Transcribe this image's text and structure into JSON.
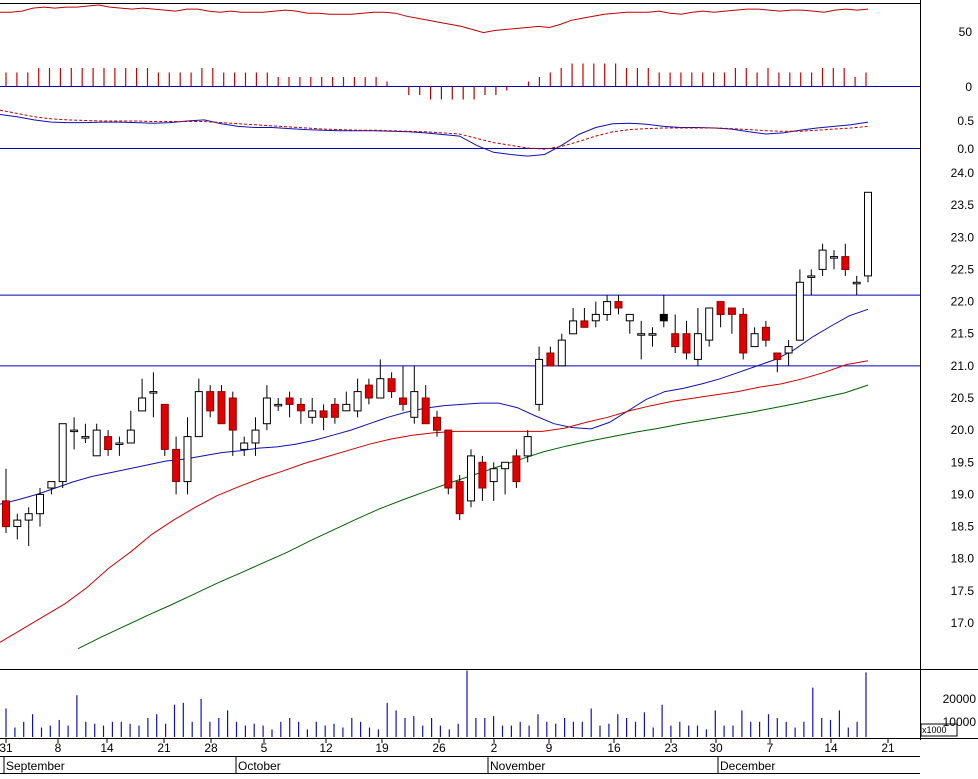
{
  "chart_data": {
    "type": "candlestick",
    "months": [
      "September",
      "October",
      "November",
      "December"
    ],
    "day_ticks": [
      "31",
      "8",
      "14",
      "21",
      "28",
      "5",
      "12",
      "19",
      "26",
      "2",
      "9",
      "16",
      "23",
      "30",
      "7",
      "14",
      "21"
    ],
    "panels": {
      "rsi": {
        "ylim": [
          30,
          80
        ],
        "ticks": [
          "50"
        ],
        "line_values": [
          72,
          72,
          73,
          76,
          77,
          76,
          77,
          77,
          78,
          79,
          77,
          76,
          75,
          76,
          75,
          74,
          73,
          75,
          75,
          73,
          72,
          73,
          72,
          72,
          72,
          73,
          74,
          73,
          71,
          71,
          70,
          70,
          70,
          71,
          72,
          72,
          71,
          68,
          66,
          64,
          62,
          60,
          58,
          55,
          52,
          54,
          55,
          56,
          57,
          58,
          57,
          60,
          64,
          66,
          68,
          70,
          71,
          72,
          72,
          72,
          73,
          71,
          70,
          72,
          73,
          72,
          73,
          74,
          75,
          75,
          74,
          73,
          74,
          74,
          73,
          72,
          74,
          75,
          74,
          75
        ]
      },
      "macd_histogram": {
        "zero_label": "0",
        "values": [
          3,
          3,
          3,
          4,
          4,
          4,
          4,
          4,
          4,
          4,
          4,
          4,
          4,
          4,
          3,
          3,
          3,
          3,
          4,
          4,
          3,
          3,
          3,
          3,
          3,
          2,
          2,
          2,
          2,
          2,
          2,
          2,
          2,
          2,
          2,
          1,
          0,
          -2,
          -2,
          -3,
          -3,
          -3,
          -3,
          -3,
          -2,
          -2,
          -1,
          0,
          1,
          2,
          3,
          4,
          5,
          5,
          5,
          5,
          5,
          4,
          4,
          4,
          3,
          3,
          3,
          3,
          3,
          3,
          3,
          4,
          4,
          3,
          4,
          3,
          3,
          3,
          3,
          4,
          4,
          4,
          2,
          3
        ]
      },
      "macd": {
        "ticks": [
          "0.5",
          "0.0"
        ],
        "series": [
          {
            "color": "#1010b0",
            "values": [
              0.62,
              0.58,
              0.52,
              0.48,
              0.47,
              0.47,
              0.48,
              0.48,
              0.47,
              0.46,
              0.47,
              0.5,
              0.52,
              0.45,
              0.4,
              0.38,
              0.38,
              0.36,
              0.34,
              0.33,
              0.32,
              0.32,
              0.32,
              0.31,
              0.3,
              0.28,
              0.25,
              0.22,
              0.05,
              -0.08,
              -0.12,
              -0.15,
              -0.12,
              0.05,
              0.25,
              0.38,
              0.45,
              0.46,
              0.44,
              0.4,
              0.38,
              0.38,
              0.37,
              0.35,
              0.3,
              0.26,
              0.28,
              0.33,
              0.37,
              0.4,
              0.43,
              0.48
            ]
          },
          {
            "color": "#c00000",
            "dashed": true,
            "values": [
              0.7,
              0.64,
              0.58,
              0.54,
              0.52,
              0.51,
              0.5,
              0.5,
              0.5,
              0.49,
              0.49,
              0.49,
              0.49,
              0.47,
              0.45,
              0.43,
              0.41,
              0.39,
              0.37,
              0.35,
              0.34,
              0.33,
              0.33,
              0.32,
              0.31,
              0.3,
              0.28,
              0.26,
              0.18,
              0.1,
              0.05,
              0.0,
              -0.02,
              0.03,
              0.12,
              0.22,
              0.3,
              0.34,
              0.36,
              0.37,
              0.37,
              0.37,
              0.37,
              0.36,
              0.34,
              0.32,
              0.31,
              0.31,
              0.33,
              0.35,
              0.37,
              0.4
            ]
          }
        ]
      },
      "price": {
        "ylim": [
          16.5,
          24.2
        ],
        "ticks": [
          "24.0",
          "23.5",
          "23.0",
          "22.5",
          "22.0",
          "21.5",
          "21.0",
          "20.5",
          "20.0",
          "19.5",
          "19.0",
          "18.5",
          "18.0",
          "17.5",
          "17.0"
        ],
        "horizontal_lines": [
          22.1,
          21.0
        ],
        "candles": [
          [
            18.9,
            18.5,
            19.4,
            18.4
          ],
          [
            18.5,
            18.6,
            18.7,
            18.3
          ],
          [
            18.6,
            18.7,
            18.8,
            18.2
          ],
          [
            18.7,
            19.0,
            19.1,
            18.5
          ],
          [
            19.1,
            19.2,
            19.2,
            19.0
          ],
          [
            19.2,
            20.1,
            20.1,
            19.1
          ],
          [
            20.0,
            20.0,
            20.2,
            19.7
          ],
          [
            19.9,
            19.9,
            20.1,
            19.8
          ],
          [
            19.6,
            20.0,
            20.1,
            19.6
          ],
          [
            19.9,
            19.7,
            20.0,
            19.6
          ],
          [
            19.8,
            19.8,
            19.9,
            19.6
          ],
          [
            19.8,
            20.0,
            20.3,
            19.8
          ],
          [
            20.3,
            20.5,
            20.8,
            20.3
          ],
          [
            20.6,
            20.6,
            20.9,
            20.2
          ],
          [
            20.4,
            19.7,
            20.4,
            19.6
          ],
          [
            19.7,
            19.2,
            19.9,
            19.0
          ],
          [
            19.2,
            19.9,
            20.2,
            19.0
          ],
          [
            19.9,
            20.6,
            20.8,
            19.9
          ],
          [
            20.6,
            20.3,
            20.7,
            20.2
          ],
          [
            20.6,
            20.1,
            20.7,
            20.1
          ],
          [
            20.5,
            20.0,
            20.6,
            19.6
          ],
          [
            19.7,
            19.8,
            19.9,
            19.6
          ],
          [
            19.8,
            20.0,
            20.2,
            19.6
          ],
          [
            20.1,
            20.5,
            20.7,
            20.0
          ],
          [
            20.4,
            20.4,
            20.5,
            20.3
          ],
          [
            20.5,
            20.4,
            20.6,
            20.2
          ],
          [
            20.4,
            20.3,
            20.5,
            20.1
          ],
          [
            20.2,
            20.3,
            20.5,
            20.1
          ],
          [
            20.3,
            20.2,
            20.4,
            20.0
          ],
          [
            20.4,
            20.2,
            20.5,
            20.1
          ],
          [
            20.3,
            20.4,
            20.6,
            20.3
          ],
          [
            20.3,
            20.6,
            20.8,
            20.2
          ],
          [
            20.7,
            20.5,
            20.8,
            20.4
          ],
          [
            20.5,
            20.8,
            21.1,
            20.5
          ],
          [
            20.8,
            20.6,
            20.9,
            20.5
          ],
          [
            20.5,
            20.4,
            21.0,
            20.3
          ],
          [
            20.2,
            20.6,
            21.0,
            20.1
          ],
          [
            20.5,
            20.1,
            20.7,
            20.1
          ],
          [
            20.2,
            20.0,
            20.3,
            19.9
          ],
          [
            20.0,
            19.1,
            20.0,
            19.0
          ],
          [
            19.2,
            18.7,
            19.3,
            18.6
          ],
          [
            18.9,
            19.6,
            19.7,
            18.8
          ],
          [
            19.5,
            19.1,
            19.6,
            18.9
          ],
          [
            19.2,
            19.4,
            19.5,
            18.9
          ],
          [
            19.4,
            19.5,
            19.5,
            19.0
          ],
          [
            19.6,
            19.2,
            19.7,
            19.1
          ],
          [
            19.6,
            19.9,
            20.0,
            19.5
          ],
          [
            20.4,
            21.1,
            21.3,
            20.3
          ],
          [
            21.2,
            21.0,
            21.3,
            21.0
          ],
          [
            21.0,
            21.4,
            21.5,
            21.0
          ],
          [
            21.5,
            21.7,
            21.9,
            21.5
          ],
          [
            21.7,
            21.6,
            21.9,
            21.6
          ],
          [
            21.7,
            21.8,
            22.0,
            21.6
          ],
          [
            21.8,
            22.0,
            22.1,
            21.7
          ],
          [
            22.0,
            21.9,
            22.1,
            21.8
          ],
          [
            21.7,
            21.8,
            21.8,
            21.5
          ],
          [
            21.5,
            21.5,
            21.7,
            21.1
          ],
          [
            21.5,
            21.5,
            21.6,
            21.3
          ],
          [
            21.7,
            21.8,
            22.1,
            21.6
          ],
          [
            21.5,
            21.3,
            21.8,
            21.2
          ],
          [
            21.5,
            21.2,
            21.7,
            21.1
          ],
          [
            21.1,
            21.5,
            21.9,
            21.0
          ],
          [
            21.4,
            21.9,
            21.9,
            21.3
          ],
          [
            22.0,
            21.8,
            22.0,
            21.6
          ],
          [
            21.9,
            21.8,
            21.9,
            21.5
          ],
          [
            21.8,
            21.2,
            21.9,
            21.1
          ],
          [
            21.3,
            21.5,
            21.6,
            21.3
          ],
          [
            21.6,
            21.4,
            21.7,
            21.3
          ],
          [
            21.2,
            21.1,
            21.2,
            20.9
          ],
          [
            21.2,
            21.3,
            21.4,
            21.0
          ],
          [
            21.4,
            22.3,
            22.5,
            21.4
          ],
          [
            22.4,
            22.4,
            22.5,
            22.1
          ],
          [
            22.5,
            22.8,
            22.9,
            22.4
          ],
          [
            22.7,
            22.7,
            22.8,
            22.5
          ],
          [
            22.7,
            22.5,
            22.9,
            22.4
          ],
          [
            22.3,
            22.3,
            22.4,
            22.1
          ],
          [
            22.4,
            23.7,
            23.7,
            22.3
          ]
        ],
        "ma_series": [
          {
            "name": "",
            "color": "#1010b0",
            "values": [
              18.85,
              18.92,
              19.0,
              19.1,
              19.2,
              19.28,
              19.34,
              19.4,
              19.46,
              19.52,
              19.55,
              19.6,
              19.65,
              19.68,
              19.72,
              19.74,
              19.78,
              19.84,
              19.92,
              20.0,
              20.1,
              20.2,
              20.28,
              20.34,
              20.38,
              20.4,
              20.42,
              20.42,
              20.35,
              20.22,
              20.1,
              20.04,
              20.02,
              20.12,
              20.3,
              20.48,
              20.6,
              20.65,
              20.72,
              20.8,
              20.9,
              21.0,
              21.1,
              21.25,
              21.45,
              21.62,
              21.78,
              21.88
            ]
          },
          {
            "name": "",
            "color": "#d00000",
            "values": [
              16.7,
              16.9,
              17.1,
              17.3,
              17.55,
              17.85,
              18.1,
              18.38,
              18.6,
              18.8,
              18.98,
              19.12,
              19.25,
              19.36,
              19.48,
              19.58,
              19.68,
              19.78,
              19.86,
              19.92,
              19.96,
              19.98,
              19.98,
              19.98,
              19.98,
              19.98,
              20.03,
              20.12,
              20.2,
              20.3,
              20.38,
              20.45,
              20.5,
              20.55,
              20.6,
              20.67,
              20.72,
              20.8,
              20.9,
              21.02,
              21.08
            ]
          },
          {
            "name": "",
            "color": "#006000",
            "values": [
              16.6,
              16.78,
              16.95,
              17.12,
              17.28,
              17.45,
              17.62,
              17.78,
              17.94,
              18.1,
              18.28,
              18.45,
              18.62,
              18.78,
              18.92,
              19.05,
              19.18,
              19.3,
              19.42,
              19.54,
              19.66,
              19.75,
              19.83,
              19.9,
              19.97,
              20.03,
              20.1,
              20.16,
              20.22,
              20.28,
              20.35,
              20.42,
              20.5,
              20.58,
              20.7
            ]
          }
        ]
      },
      "volume": {
        "ticks": [
          "20000",
          "10000"
        ],
        "multiplier_label": "x1000",
        "values": [
          15,
          5,
          8,
          12,
          5,
          6,
          9,
          6,
          22,
          8,
          7,
          6,
          8,
          8,
          7,
          6,
          10,
          12,
          7,
          17,
          18,
          8,
          20,
          8,
          10,
          14,
          8,
          6,
          7,
          6,
          4,
          8,
          10,
          8,
          4,
          8,
          6,
          7,
          5,
          10,
          8,
          5,
          4,
          18,
          14,
          10,
          11,
          6,
          10,
          6,
          4,
          7,
          35,
          10,
          10,
          11,
          6,
          6,
          8,
          6,
          12,
          8,
          7,
          10,
          8,
          8,
          15,
          6,
          7,
          12,
          10,
          8,
          13,
          5,
          17,
          6,
          8,
          6,
          6,
          4,
          14,
          6,
          6,
          14,
          8,
          8,
          12,
          10,
          8,
          5,
          8,
          26,
          10,
          9,
          14,
          5,
          8,
          34
        ]
      }
    }
  }
}
